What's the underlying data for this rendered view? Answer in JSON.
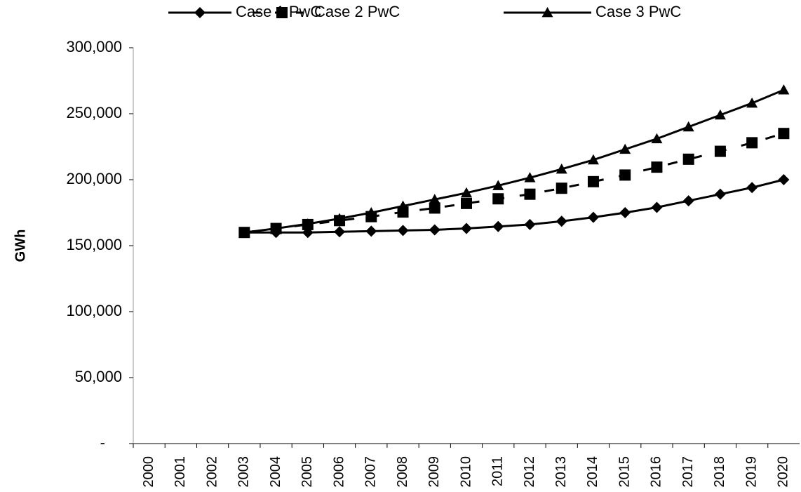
{
  "chart_data": {
    "type": "line",
    "ylabel": "GWh",
    "categories": [
      "2000",
      "2001",
      "2002",
      "2003",
      "2004",
      "2005",
      "2006",
      "2007",
      "2008",
      "2009",
      "2010",
      "2011",
      "2012",
      "2013",
      "2014",
      "2015",
      "2016",
      "2017",
      "2018",
      "2019",
      "2020"
    ],
    "series": [
      {
        "name": "Case 1 PwC",
        "color": "#000000",
        "marker": "diamond",
        "line_style": "solid",
        "values": [
          null,
          null,
          null,
          160000,
          160000,
          160000,
          160500,
          161000,
          161500,
          162000,
          163000,
          164500,
          166000,
          168500,
          171500,
          175000,
          179000,
          184000,
          189000,
          194000,
          200000
        ]
      },
      {
        "name": "Case 2 PwC",
        "color": "#000000",
        "marker": "square",
        "line_style": "dashed",
        "values": [
          null,
          null,
          null,
          160000,
          163000,
          166000,
          169000,
          172000,
          175500,
          178500,
          182000,
          185500,
          189000,
          193500,
          198500,
          203500,
          209500,
          215500,
          221500,
          228000,
          235000
        ]
      },
      {
        "name": "Case 3 PwC",
        "color": "#000000",
        "marker": "triangle",
        "line_style": "solid",
        "values": [
          null,
          null,
          null,
          160000,
          163000,
          166500,
          170500,
          175000,
          180000,
          185000,
          190000,
          195500,
          201500,
          208000,
          215000,
          223000,
          231000,
          240000,
          249000,
          258000,
          268000
        ]
      }
    ],
    "ylim": [
      0,
      300000
    ],
    "yticks": [
      {
        "value": 0,
        "label": "-"
      },
      {
        "value": 50000,
        "label": "50,000"
      },
      {
        "value": 100000,
        "label": "100,000"
      },
      {
        "value": 150000,
        "label": "150,000"
      },
      {
        "value": 200000,
        "label": "200,000"
      },
      {
        "value": 250000,
        "label": "250,000"
      },
      {
        "value": 300000,
        "label": "300,000"
      }
    ],
    "grid": false,
    "legend": "top"
  }
}
